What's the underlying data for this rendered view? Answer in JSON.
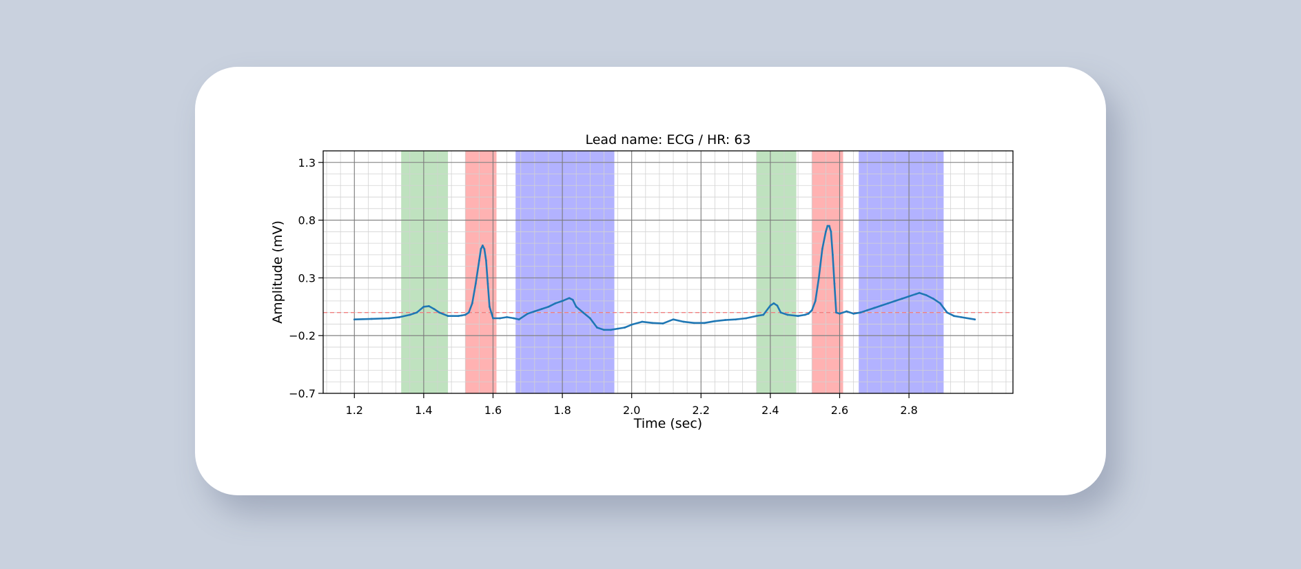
{
  "chart_data": {
    "type": "line",
    "title": "Lead name: ECG  / HR: 63",
    "xlabel": "Time (sec)",
    "ylabel": "Amplitude (mV)",
    "xlim": [
      1.11,
      3.1
    ],
    "ylim": [
      -0.7,
      1.4
    ],
    "xticks": [
      1.2,
      1.4,
      1.6,
      1.8,
      2.0,
      2.2,
      2.4,
      2.6,
      2.8
    ],
    "xtick_labels": [
      "1.2",
      "1.4",
      "1.6",
      "1.8",
      "2.0",
      "2.2",
      "2.4",
      "2.6",
      "2.8"
    ],
    "yticks": [
      -0.7,
      -0.2,
      0.3,
      0.8,
      1.3
    ],
    "ytick_labels": [
      "−0.7",
      "−0.2",
      "0.3",
      "0.8",
      "1.3"
    ],
    "grid": true,
    "baseline": 0.0,
    "regions": [
      {
        "start": 1.335,
        "end": 1.47,
        "color": "#2ca02c"
      },
      {
        "start": 1.52,
        "end": 1.61,
        "color": "#ff0000"
      },
      {
        "start": 1.665,
        "end": 1.95,
        "color": "#0000ff"
      },
      {
        "start": 2.36,
        "end": 2.475,
        "color": "#2ca02c"
      },
      {
        "start": 2.52,
        "end": 2.61,
        "color": "#ff0000"
      },
      {
        "start": 2.655,
        "end": 2.9,
        "color": "#0000ff"
      }
    ],
    "series": [
      {
        "color": "#1f77b4",
        "x": [
          1.2,
          1.25,
          1.3,
          1.33,
          1.36,
          1.38,
          1.4,
          1.415,
          1.43,
          1.445,
          1.47,
          1.5,
          1.51,
          1.52,
          1.53,
          1.54,
          1.55,
          1.56,
          1.565,
          1.57,
          1.575,
          1.58,
          1.585,
          1.59,
          1.6,
          1.62,
          1.64,
          1.66,
          1.675,
          1.7,
          1.72,
          1.74,
          1.76,
          1.78,
          1.8,
          1.82,
          1.83,
          1.84,
          1.86,
          1.88,
          1.9,
          1.92,
          1.94,
          1.96,
          1.98,
          2.0,
          2.03,
          2.06,
          2.09,
          2.12,
          2.15,
          2.18,
          2.21,
          2.24,
          2.27,
          2.3,
          2.33,
          2.36,
          2.38,
          2.4,
          2.41,
          2.42,
          2.43,
          2.45,
          2.48,
          2.5,
          2.51,
          2.52,
          2.53,
          2.54,
          2.55,
          2.56,
          2.565,
          2.57,
          2.575,
          2.58,
          2.585,
          2.59,
          2.6,
          2.62,
          2.64,
          2.66,
          2.68,
          2.7,
          2.72,
          2.74,
          2.76,
          2.78,
          2.8,
          2.82,
          2.83,
          2.85,
          2.87,
          2.89,
          2.91,
          2.93,
          2.95,
          2.99
        ],
        "y": [
          -0.06,
          -0.055,
          -0.05,
          -0.04,
          -0.02,
          0.0,
          0.05,
          0.055,
          0.03,
          0.0,
          -0.03,
          -0.03,
          -0.025,
          -0.02,
          0.0,
          0.08,
          0.25,
          0.45,
          0.55,
          0.58,
          0.55,
          0.45,
          0.25,
          0.05,
          -0.05,
          -0.05,
          -0.04,
          -0.05,
          -0.06,
          -0.01,
          0.01,
          0.03,
          0.05,
          0.08,
          0.1,
          0.125,
          0.11,
          0.05,
          0.0,
          -0.05,
          -0.13,
          -0.15,
          -0.15,
          -0.14,
          -0.13,
          -0.105,
          -0.08,
          -0.09,
          -0.095,
          -0.06,
          -0.08,
          -0.09,
          -0.09,
          -0.075,
          -0.065,
          -0.06,
          -0.05,
          -0.03,
          -0.02,
          0.06,
          0.08,
          0.06,
          0.0,
          -0.02,
          -0.03,
          -0.02,
          -0.01,
          0.02,
          0.1,
          0.3,
          0.55,
          0.7,
          0.75,
          0.75,
          0.7,
          0.5,
          0.25,
          0.0,
          -0.01,
          0.01,
          -0.01,
          0.0,
          0.02,
          0.04,
          0.06,
          0.08,
          0.1,
          0.12,
          0.14,
          0.16,
          0.17,
          0.15,
          0.12,
          0.08,
          0.0,
          -0.03,
          -0.04,
          -0.06
        ]
      }
    ]
  }
}
